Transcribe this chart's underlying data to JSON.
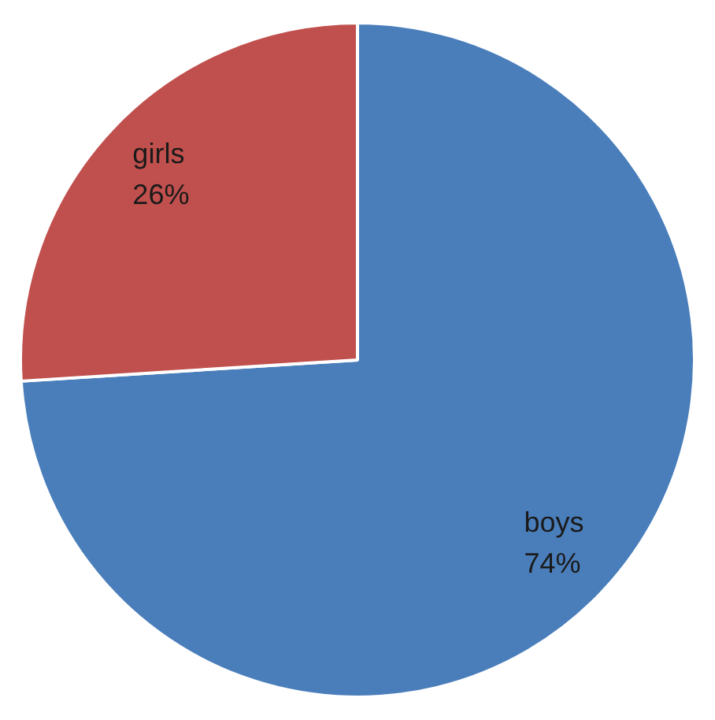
{
  "chart_data": {
    "type": "pie",
    "categories": [
      "boys",
      "girls"
    ],
    "values": [
      74,
      26
    ],
    "colors": [
      "#4a7ebb",
      "#c0504d"
    ],
    "value_labels": [
      "74%",
      "26%"
    ],
    "legend": false
  }
}
